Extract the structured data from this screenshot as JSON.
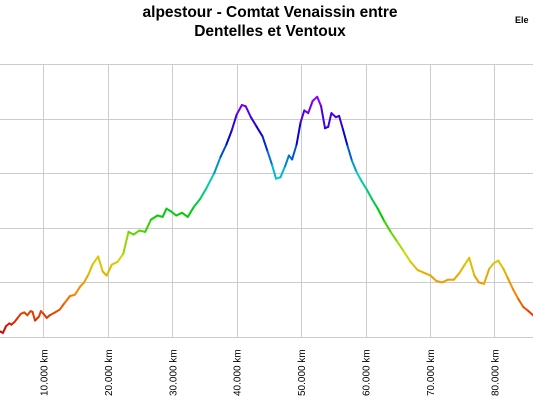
{
  "title_line1": "alpestour - Comtat Venaissin entre",
  "title_line2": "Dentelles et Ventoux",
  "legend_label": "Ele",
  "chart_data": {
    "type": "line",
    "title": "alpestour - Comtat Venaissin entre Dentelles et Ventoux",
    "xlabel": "",
    "ylabel": "",
    "legend": "top-right",
    "legend_entries": [
      "Ele"
    ],
    "grid": true,
    "xlim": [
      3250,
      86000
    ],
    "ylim": [
      0,
      1000
    ],
    "x_ticks": [
      10000,
      20000,
      30000,
      40000,
      50000,
      60000,
      70000,
      80000
    ],
    "x_tick_labels": [
      "10.000 km",
      "20.000 km",
      "30.000 km",
      "40.000 km",
      "50.000 km",
      "60.000 km",
      "70.000 km",
      "80.000 km"
    ],
    "y_ticks": [
      0,
      200,
      400,
      600,
      800,
      1000
    ],
    "series": [
      {
        "color_scale": [
          "#cc0000",
          "#ff7f00",
          "#ccdd00",
          "#00cc00",
          "#00cccc",
          "#0000cc",
          "#9900ff"
        ],
        "x": [
          3300,
          3700,
          4200,
          4700,
          5000,
          5500,
          6000,
          6500,
          7000,
          7500,
          8000,
          8300,
          8700,
          9300,
          9600,
          10000,
          10500,
          11000,
          11800,
          12500,
          13300,
          14100,
          14900,
          15700,
          16300,
          17000,
          17600,
          18200,
          18500,
          19200,
          19800,
          20600,
          21500,
          22400,
          23200,
          24000,
          24900,
          25800,
          26700,
          27700,
          28500,
          29100,
          29800,
          30600,
          31500,
          32400,
          33300,
          34300,
          35300,
          36500,
          37500,
          38400,
          39200,
          40000,
          40800,
          41400,
          42200,
          43100,
          44000,
          44800,
          45500,
          46100,
          46800,
          47500,
          48100,
          48600,
          49300,
          49900,
          50500,
          51100,
          51800,
          52500,
          53100,
          53700,
          54200,
          54700,
          55400,
          55900,
          56500,
          57200,
          57900,
          58600,
          59400,
          60200,
          61000,
          61900,
          62900,
          63900,
          64900,
          65900,
          67000,
          68100,
          69100,
          70100,
          71000,
          71900,
          72800,
          73700,
          74600,
          75400,
          76100,
          76900,
          77600,
          78400,
          79200,
          79900,
          80600,
          81400,
          82100,
          82900,
          83700,
          84500,
          85300,
          86000
        ],
        "y": [
          20,
          15,
          40,
          50,
          45,
          55,
          70,
          85,
          90,
          80,
          95,
          92,
          60,
          75,
          95,
          85,
          70,
          80,
          90,
          100,
          125,
          150,
          155,
          185,
          200,
          230,
          265,
          285,
          295,
          240,
          225,
          265,
          275,
          305,
          385,
          375,
          390,
          385,
          430,
          445,
          440,
          470,
          460,
          445,
          455,
          440,
          475,
          505,
          545,
          600,
          660,
          705,
          755,
          815,
          850,
          845,
          805,
          770,
          735,
          680,
          630,
          580,
          585,
          625,
          665,
          650,
          705,
          785,
          830,
          820,
          865,
          880,
          845,
          765,
          770,
          820,
          805,
          810,
          760,
          700,
          645,
          605,
          570,
          540,
          505,
          470,
          425,
          385,
          350,
          315,
          275,
          245,
          235,
          225,
          205,
          200,
          210,
          210,
          235,
          265,
          290,
          225,
          200,
          195,
          250,
          270,
          280,
          250,
          215,
          175,
          140,
          110,
          95,
          80
        ]
      }
    ]
  }
}
